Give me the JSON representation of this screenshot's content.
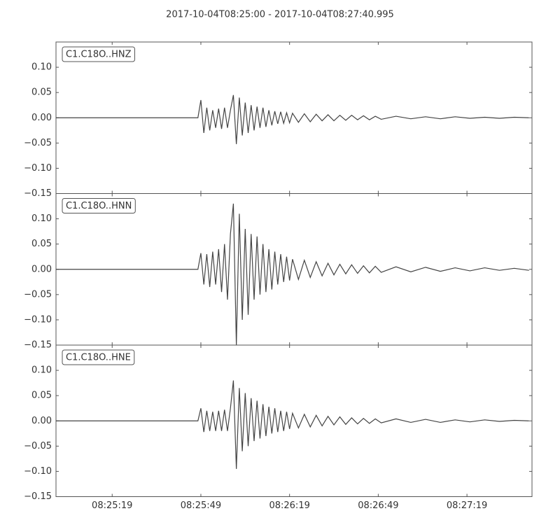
{
  "chart_data": [
    {
      "type": "line",
      "title": "2017-10-04T08:25:00  -  2017-10-04T08:27:40.995",
      "label": "C1.C18O..HNZ",
      "color": "#444444",
      "x": [
        "08:25:00",
        "08:25:48",
        "08:25:49",
        "08:25:50",
        "08:25:51",
        "08:25:52",
        "08:25:53",
        "08:25:54",
        "08:25:55",
        "08:25:56",
        "08:25:57",
        "08:25:58",
        "08:25:59",
        "08:26:00",
        "08:26:01",
        "08:26:02",
        "08:26:03",
        "08:26:04",
        "08:26:05",
        "08:26:06",
        "08:26:07",
        "08:26:08",
        "08:26:09",
        "08:26:10",
        "08:26:11",
        "08:26:12",
        "08:26:13",
        "08:26:14",
        "08:26:15",
        "08:26:16",
        "08:26:17",
        "08:26:18",
        "08:26:19",
        "08:26:20",
        "08:26:22",
        "08:26:24",
        "08:26:26",
        "08:26:28",
        "08:26:30",
        "08:26:32",
        "08:26:34",
        "08:26:36",
        "08:26:38",
        "08:26:40",
        "08:26:42",
        "08:26:44",
        "08:26:46",
        "08:26:48",
        "08:26:50",
        "08:26:55",
        "08:27:00",
        "08:27:05",
        "08:27:10",
        "08:27:15",
        "08:27:20",
        "08:27:25",
        "08:27:30",
        "08:27:35",
        "08:27:40"
      ],
      "values": [
        0,
        0,
        0.035,
        -0.03,
        0.02,
        -0.025,
        0.015,
        -0.02,
        0.018,
        -0.022,
        0.02,
        -0.02,
        0.015,
        0.045,
        -0.052,
        0.04,
        -0.035,
        0.03,
        -0.03,
        0.025,
        -0.025,
        0.022,
        -0.02,
        0.02,
        -0.018,
        0.015,
        -0.015,
        0.013,
        -0.012,
        0.012,
        -0.011,
        0.01,
        -0.01,
        0.009,
        -0.009,
        0.008,
        -0.008,
        0.007,
        -0.006,
        0.006,
        -0.006,
        0.005,
        -0.005,
        0.005,
        -0.004,
        0.004,
        -0.004,
        0.003,
        -0.003,
        0.003,
        -0.002,
        0.002,
        -0.002,
        0.002,
        -0.001,
        0.001,
        -0.001,
        0.001,
        0
      ],
      "xlim": [
        "08:25:00",
        "08:27:40.995"
      ],
      "xticks": [
        "08:25:19",
        "08:25:49",
        "08:26:19",
        "08:26:49",
        "08:27:19"
      ],
      "ylim": [
        -0.15,
        0.15
      ],
      "yticks": [
        {
          "value": -0.15,
          "label": "−0.15"
        },
        {
          "value": -0.1,
          "label": "−0.10"
        },
        {
          "value": -0.05,
          "label": "−0.05"
        },
        {
          "value": 0,
          "label": "0.00"
        },
        {
          "value": 0.05,
          "label": "0.05"
        },
        {
          "value": 0.1,
          "label": "0.10"
        }
      ]
    },
    {
      "type": "line",
      "label": "C1.C18O..HNN",
      "color": "#444444",
      "x": [
        "08:25:00",
        "08:25:48",
        "08:25:49",
        "08:25:50",
        "08:25:51",
        "08:25:52",
        "08:25:53",
        "08:25:54",
        "08:25:55",
        "08:25:56",
        "08:25:57",
        "08:25:58",
        "08:25:59",
        "08:26:00",
        "08:26:01",
        "08:26:02",
        "08:26:03",
        "08:26:04",
        "08:26:05",
        "08:26:06",
        "08:26:07",
        "08:26:08",
        "08:26:09",
        "08:26:10",
        "08:26:11",
        "08:26:12",
        "08:26:13",
        "08:26:14",
        "08:26:15",
        "08:26:16",
        "08:26:17",
        "08:26:18",
        "08:26:19",
        "08:26:20",
        "08:26:22",
        "08:26:24",
        "08:26:26",
        "08:26:28",
        "08:26:30",
        "08:26:32",
        "08:26:34",
        "08:26:36",
        "08:26:38",
        "08:26:40",
        "08:26:42",
        "08:26:44",
        "08:26:46",
        "08:26:48",
        "08:26:50",
        "08:26:55",
        "08:27:00",
        "08:27:05",
        "08:27:10",
        "08:27:15",
        "08:27:20",
        "08:27:25",
        "08:27:30",
        "08:27:35",
        "08:27:40"
      ],
      "values": [
        0,
        0,
        0.032,
        -0.03,
        0.03,
        -0.035,
        0.035,
        -0.03,
        0.04,
        -0.045,
        0.05,
        -0.06,
        0.07,
        0.13,
        -0.15,
        0.11,
        -0.1,
        0.08,
        -0.09,
        0.07,
        -0.06,
        0.065,
        -0.05,
        0.05,
        -0.045,
        0.04,
        -0.04,
        0.035,
        -0.03,
        0.03,
        -0.025,
        0.025,
        -0.022,
        0.02,
        -0.02,
        0.018,
        -0.016,
        0.015,
        -0.013,
        0.012,
        -0.011,
        0.01,
        -0.009,
        0.009,
        -0.008,
        0.007,
        -0.007,
        0.006,
        -0.006,
        0.005,
        -0.005,
        0.004,
        -0.004,
        0.003,
        -0.003,
        0.003,
        -0.002,
        0.002,
        -0.002
      ],
      "xlim": [
        "08:25:00",
        "08:27:40.995"
      ],
      "xticks": [
        "08:25:19",
        "08:25:49",
        "08:26:19",
        "08:26:49",
        "08:27:19"
      ],
      "ylim": [
        -0.15,
        0.15
      ],
      "yticks": [
        {
          "value": -0.15,
          "label": "−0.15"
        },
        {
          "value": -0.1,
          "label": "−0.10"
        },
        {
          "value": -0.05,
          "label": "−0.05"
        },
        {
          "value": 0,
          "label": "0.00"
        },
        {
          "value": 0.05,
          "label": "0.05"
        },
        {
          "value": 0.1,
          "label": "0.10"
        }
      ]
    },
    {
      "type": "line",
      "label": "C1.C18O..HNE",
      "color": "#444444",
      "x": [
        "08:25:00",
        "08:25:48",
        "08:25:49",
        "08:25:50",
        "08:25:51",
        "08:25:52",
        "08:25:53",
        "08:25:54",
        "08:25:55",
        "08:25:56",
        "08:25:57",
        "08:25:58",
        "08:25:59",
        "08:26:00",
        "08:26:01",
        "08:26:02",
        "08:26:03",
        "08:26:04",
        "08:26:05",
        "08:26:06",
        "08:26:07",
        "08:26:08",
        "08:26:09",
        "08:26:10",
        "08:26:11",
        "08:26:12",
        "08:26:13",
        "08:26:14",
        "08:26:15",
        "08:26:16",
        "08:26:17",
        "08:26:18",
        "08:26:19",
        "08:26:20",
        "08:26:22",
        "08:26:24",
        "08:26:26",
        "08:26:28",
        "08:26:30",
        "08:26:32",
        "08:26:34",
        "08:26:36",
        "08:26:38",
        "08:26:40",
        "08:26:42",
        "08:26:44",
        "08:26:46",
        "08:26:48",
        "08:26:50",
        "08:26:55",
        "08:27:00",
        "08:27:05",
        "08:27:10",
        "08:27:15",
        "08:27:20",
        "08:27:25",
        "08:27:30",
        "08:27:35",
        "08:27:40"
      ],
      "values": [
        0,
        0,
        0.025,
        -0.022,
        0.02,
        -0.02,
        0.018,
        -0.02,
        0.02,
        -0.02,
        0.022,
        -0.02,
        0.025,
        0.08,
        -0.095,
        0.065,
        -0.06,
        0.055,
        -0.05,
        0.045,
        -0.04,
        0.04,
        -0.035,
        0.033,
        -0.03,
        0.028,
        -0.025,
        0.025,
        -0.022,
        0.02,
        -0.02,
        0.018,
        -0.016,
        0.015,
        -0.014,
        0.013,
        -0.012,
        0.011,
        -0.01,
        0.009,
        -0.008,
        0.008,
        -0.007,
        0.006,
        -0.006,
        0.005,
        -0.005,
        0.004,
        -0.004,
        0.004,
        -0.003,
        0.003,
        -0.003,
        0.002,
        -0.002,
        0.002,
        -0.001,
        0.001,
        0
      ],
      "xlim": [
        "08:25:00",
        "08:27:40.995"
      ],
      "xticks": [
        "08:25:19",
        "08:25:49",
        "08:26:19",
        "08:26:49",
        "08:27:19"
      ],
      "ylim": [
        -0.15,
        0.15
      ],
      "yticks": [
        {
          "value": -0.15,
          "label": "−0.15"
        },
        {
          "value": -0.1,
          "label": "−0.10"
        },
        {
          "value": -0.05,
          "label": "−0.05"
        },
        {
          "value": 0,
          "label": "0.00"
        },
        {
          "value": 0.05,
          "label": "0.05"
        },
        {
          "value": 0.1,
          "label": "0.10"
        }
      ]
    }
  ]
}
